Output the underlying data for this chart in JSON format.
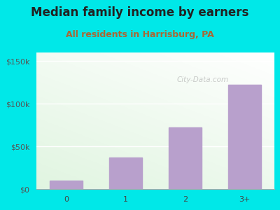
{
  "title": "Median family income by earners",
  "subtitle": "All residents in Harrisburg, PA",
  "categories": [
    "0",
    "1",
    "2",
    "3+"
  ],
  "values": [
    10000,
    37000,
    72000,
    122000
  ],
  "bar_color": "#b8a0cc",
  "title_color": "#222222",
  "subtitle_color": "#aa6633",
  "outer_bg_color": "#00e8e8",
  "yticks": [
    0,
    50000,
    100000,
    150000
  ],
  "ytick_labels": [
    "$0",
    "$50k",
    "$100k",
    "$150k"
  ],
  "ylim": [
    0,
    160000
  ],
  "watermark": "City-Data.com",
  "title_fontsize": 12,
  "subtitle_fontsize": 9,
  "axis_label_fontsize": 8
}
